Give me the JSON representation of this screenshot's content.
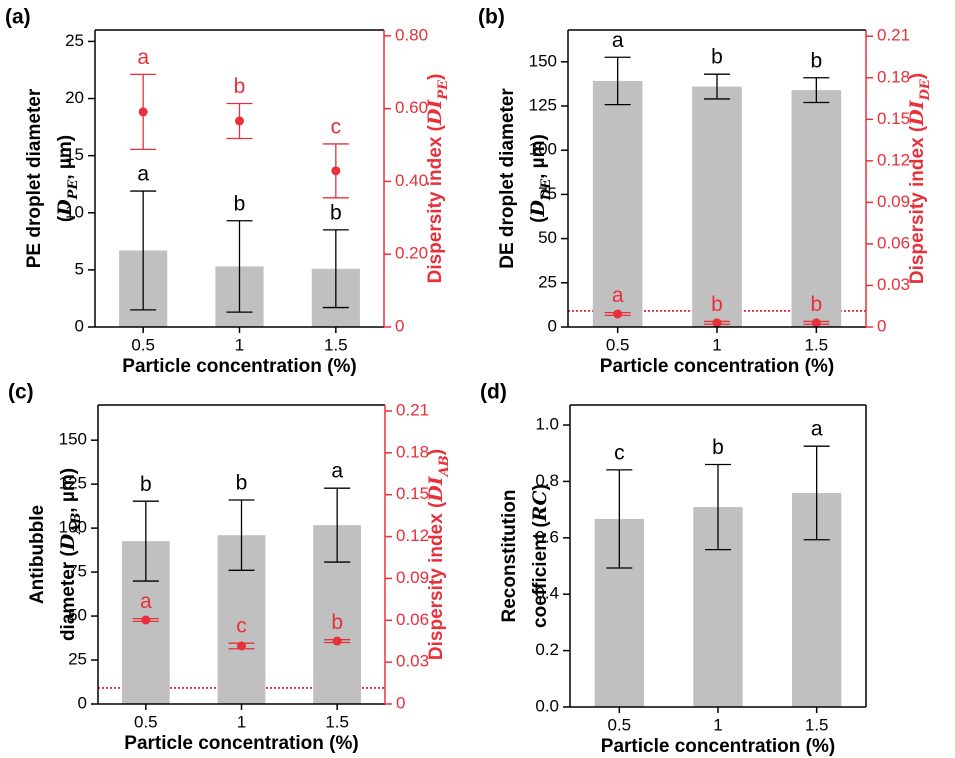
{
  "chart_data": [
    {
      "type": "bar",
      "panel_label": "(a)",
      "categories": [
        "0.5",
        "1",
        "1.5"
      ],
      "xlabel": "Particle concentration (%)",
      "ylabel": [
        [
          {
            "text": "PE droplet diameter"
          }
        ],
        [
          {
            "text": "("
          },
          {
            "text": "D",
            "style": "italic"
          },
          {
            "text": "PE",
            "style": "sub"
          },
          {
            "text": ", µm)"
          }
        ]
      ],
      "y2label": [
        [
          {
            "text": "Dispersity index  ("
          },
          {
            "text": "DI",
            "style": "italic"
          },
          {
            "text": "PE",
            "style": "sub"
          },
          {
            "text": ")"
          }
        ]
      ],
      "ylim": [
        0,
        26
      ],
      "yticks": [
        0,
        5,
        10,
        15,
        20,
        25
      ],
      "y2lim": [
        0,
        0.816
      ],
      "y2ticks": [
        0,
        {
          "value": 0.2,
          "label": "0.20"
        },
        {
          "value": 0.4,
          "label": "0.40"
        },
        {
          "value": 0.6,
          "label": "0.60"
        },
        {
          "value": 0.8,
          "label": "0.80"
        }
      ],
      "series": [
        {
          "type": "bar",
          "color": "#c0c0c0",
          "values": [
            6.7,
            5.3,
            5.1
          ],
          "errors": [
            5.2,
            4.0,
            3.4
          ],
          "labels": [
            "a",
            "b",
            "b"
          ],
          "label_color": "#000000"
        },
        {
          "type": "scatter",
          "axis": "y2",
          "color": "#e8303a",
          "values": [
            0.591,
            0.566,
            0.429
          ],
          "errors": [
            0.103,
            0.048,
            0.074
          ],
          "labels": [
            "a",
            "b",
            "c"
          ],
          "label_color": "#e8303a"
        }
      ]
    },
    {
      "type": "bar",
      "panel_label": "(b)",
      "categories": [
        "0.5",
        "1",
        "1.5"
      ],
      "xlabel": "Particle concentration (%)",
      "ylabel": [
        [
          {
            "text": "DE droplet diameter"
          }
        ],
        [
          {
            "text": "("
          },
          {
            "text": "D",
            "style": "italic"
          },
          {
            "text": "DE",
            "style": "sub"
          },
          {
            "text": ", µm)"
          }
        ]
      ],
      "y2label": [
        [
          {
            "text": "Dispersity index  ("
          },
          {
            "text": "DI",
            "style": "italic"
          },
          {
            "text": "DE",
            "style": "sub"
          },
          {
            "text": ")"
          }
        ]
      ],
      "ylim": [
        0,
        168
      ],
      "yticks": [
        0,
        25,
        50,
        75,
        100,
        125,
        150
      ],
      "y2lim": [
        0,
        0.2145
      ],
      "y2ticks": [
        0,
        {
          "value": 0.03,
          "label": "0.03"
        },
        {
          "value": 0.06,
          "label": "0.06"
        },
        {
          "value": 0.09,
          "label": "0.09"
        },
        {
          "value": 0.12,
          "label": "0.12"
        },
        {
          "value": 0.15,
          "label": "0.15"
        },
        {
          "value": 0.18,
          "label": "0.18"
        },
        {
          "value": 0.21,
          "label": "0.21"
        }
      ],
      "y2_reference_line": 0.0116,
      "series": [
        {
          "type": "bar",
          "color": "#c0c0c0",
          "values": [
            139.2,
            136,
            134
          ],
          "errors": [
            13.4,
            7,
            7
          ],
          "labels": [
            "a",
            "b",
            "b"
          ],
          "label_color": "#000000"
        },
        {
          "type": "scatter",
          "axis": "y2",
          "color": "#e8303a",
          "values": [
            0.0094,
            0.003,
            0.003
          ],
          "errors": [
            0.001,
            0.001,
            0.001
          ],
          "labels": [
            "a",
            "b",
            "b"
          ],
          "label_color": "#e8303a"
        }
      ]
    },
    {
      "type": "bar",
      "panel_label": "(c)",
      "categories": [
        "0.5",
        "1",
        "1.5"
      ],
      "xlabel": "Particle concentration (%)",
      "ylabel": [
        [
          {
            "text": "Antibubble"
          }
        ],
        [
          {
            "text": "diameter ("
          },
          {
            "text": "D",
            "style": "italic"
          },
          {
            "text": "AB",
            "style": "sub"
          },
          {
            "text": ", µm)"
          }
        ]
      ],
      "y2label": [
        [
          {
            "text": "Dispersity index  ("
          },
          {
            "text": "DI",
            "style": "italic"
          },
          {
            "text": "AB",
            "style": "sub"
          },
          {
            "text": ")"
          }
        ]
      ],
      "ylim": [
        0,
        170
      ],
      "yticks": [
        0,
        25,
        50,
        75,
        100,
        125,
        150
      ],
      "y2lim": [
        0,
        0.2143
      ],
      "y2ticks": [
        0,
        {
          "value": 0.03,
          "label": "0.03"
        },
        {
          "value": 0.06,
          "label": "0.06"
        },
        {
          "value": 0.09,
          "label": "0.09"
        },
        {
          "value": 0.12,
          "label": "0.12"
        },
        {
          "value": 0.15,
          "label": "0.15"
        },
        {
          "value": 0.18,
          "label": "0.18"
        },
        {
          "value": 0.21,
          "label": "0.21"
        }
      ],
      "y2_reference_line": 0.0115,
      "series": [
        {
          "type": "bar",
          "color": "#c0c0c0",
          "values": [
            92.6,
            96,
            101.7
          ],
          "errors": [
            22.7,
            20,
            21
          ],
          "labels": [
            "b",
            "b",
            "a"
          ],
          "label_color": "#000000"
        },
        {
          "type": "scatter",
          "axis": "y2",
          "color": "#e8303a",
          "values": [
            0.0602,
            0.0416,
            0.0451
          ],
          "errors": [
            0.001,
            0.002,
            0.001
          ],
          "labels": [
            "a",
            "c",
            "b"
          ],
          "label_color": "#e8303a"
        }
      ]
    },
    {
      "type": "bar",
      "panel_label": "(d)",
      "categories": [
        "0.5",
        "1",
        "1.5"
      ],
      "xlabel": "Particle concentration (%)",
      "ylabel": [
        [
          {
            "text": "Reconstitution"
          }
        ],
        [
          {
            "text": "coefficient ("
          },
          {
            "text": "RC",
            "style": "italic"
          },
          {
            "text": ")"
          }
        ]
      ],
      "ylim": [
        0,
        1.071
      ],
      "yticks": [
        {
          "value": 0,
          "label": "0.0"
        },
        0.2,
        0.4,
        0.6,
        0.8,
        {
          "value": 1,
          "label": "1.0"
        }
      ],
      "series": [
        {
          "type": "bar",
          "color": "#c0c0c0",
          "values": [
            0.667,
            0.709,
            0.759
          ],
          "errors": [
            0.174,
            0.151,
            0.166
          ],
          "labels": [
            "c",
            "b",
            "a"
          ],
          "label_color": "#000000"
        }
      ]
    }
  ]
}
